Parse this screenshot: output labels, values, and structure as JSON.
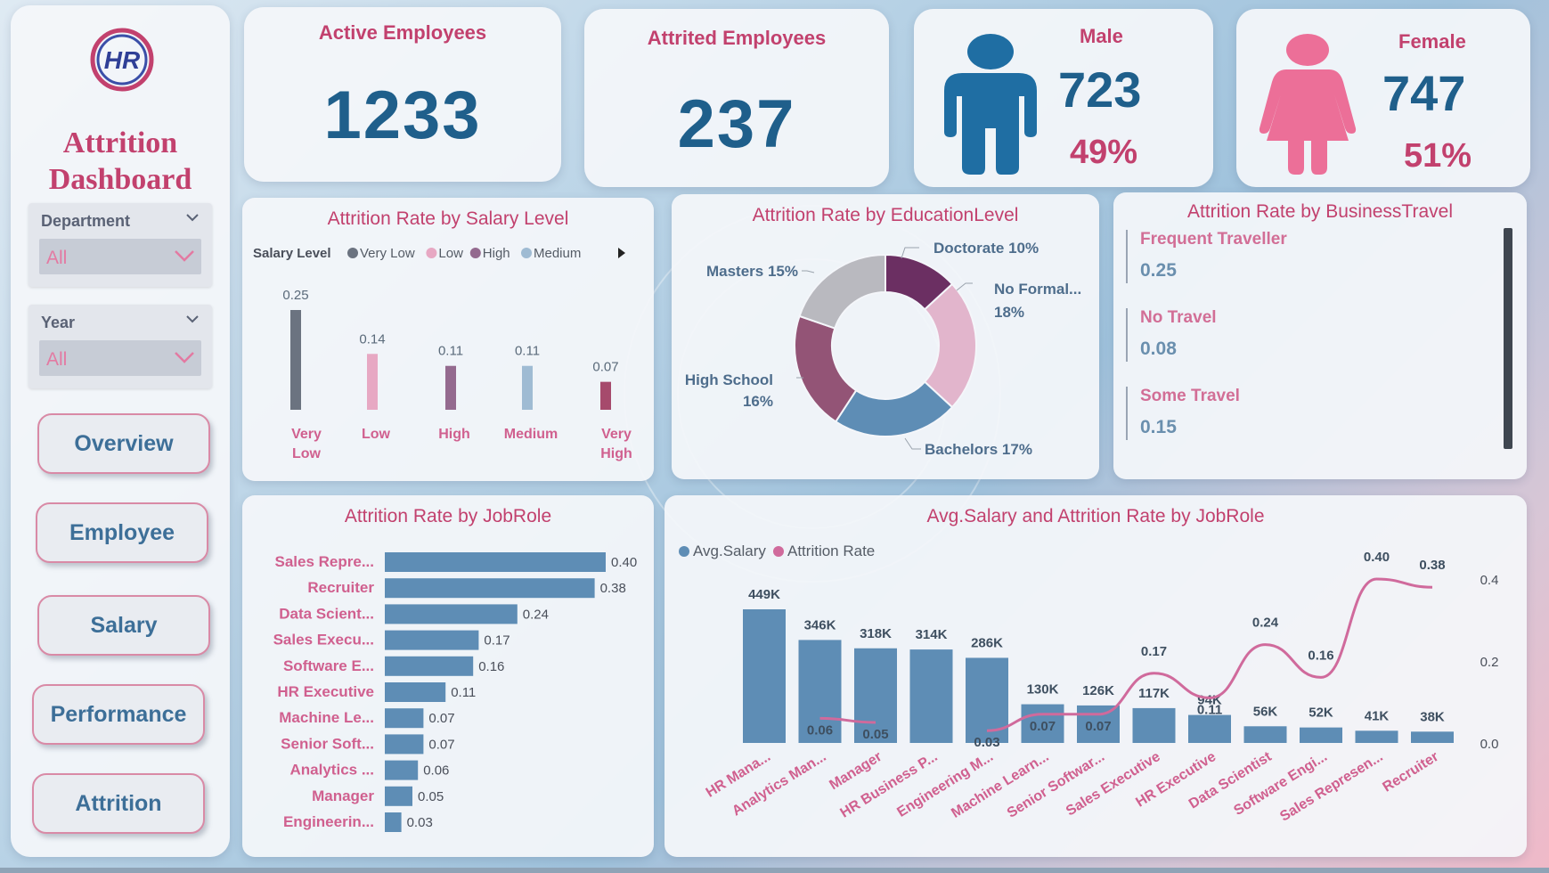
{
  "sidebar": {
    "logo_text": "HR",
    "title_line1": "Attrition",
    "title_line2": "Dashboard",
    "slicers": [
      {
        "label": "Department",
        "value": "All"
      },
      {
        "label": "Year",
        "value": "All"
      }
    ],
    "nav": [
      "Overview",
      "Employee",
      "Salary",
      "Performance",
      "Attrition"
    ]
  },
  "kpis": {
    "active": {
      "title": "Active Employees",
      "value": "1233"
    },
    "attrited": {
      "title": "Attrited Employees",
      "value": "237"
    },
    "male": {
      "title": "Male",
      "value": "723",
      "pct": "49%",
      "color": "#1f6ea3",
      "icon": "male-person-icon"
    },
    "female": {
      "title": "Female",
      "value": "747",
      "pct": "51%",
      "color": "#ec6f98",
      "icon": "female-person-icon"
    }
  },
  "salary_level": {
    "title": "Attrition Rate by Salary Level",
    "legend_title": "Salary Level",
    "legend": [
      {
        "name": "Very Low",
        "color": "#6b7380"
      },
      {
        "name": "Low",
        "color": "#e7a8c3"
      },
      {
        "name": "High",
        "color": "#946a8f"
      },
      {
        "name": "Medium",
        "color": "#9fbbd3"
      }
    ],
    "bars": [
      {
        "label": [
          "Very",
          "Low"
        ],
        "value": 0.25,
        "value_text": "0.25",
        "color": "#6b7380"
      },
      {
        "label": [
          "Low"
        ],
        "value": 0.14,
        "value_text": "0.14",
        "color": "#e7a8c3"
      },
      {
        "label": [
          "High"
        ],
        "value": 0.11,
        "value_text": "0.11",
        "color": "#946a8f"
      },
      {
        "label": [
          "Medium"
        ],
        "value": 0.11,
        "value_text": "0.11",
        "color": "#9fbbd3"
      },
      {
        "label": [
          "Very",
          "High"
        ],
        "value": 0.07,
        "value_text": "0.07",
        "color": "#a64a6c"
      }
    ]
  },
  "education": {
    "title": "Attrition Rate by EducationLevel",
    "slices": [
      {
        "name": "Doctorate",
        "pct": 10,
        "label": "Doctorate 10%",
        "color": "#6b2f62"
      },
      {
        "name": "No Formal...",
        "pct": 18,
        "label1": "No Formal...",
        "label2": "18%",
        "color": "#e2b5cc"
      },
      {
        "name": "Bachelors",
        "pct": 17,
        "label": "Bachelors 17%",
        "color": "#5e8db5"
      },
      {
        "name": "High School",
        "pct": 16,
        "label1": "High School",
        "label2": "16%",
        "color": "#935476"
      },
      {
        "name": "Masters",
        "pct": 15,
        "label": "Masters 15%",
        "color": "#b9b9bf"
      }
    ]
  },
  "travel": {
    "title": "Attrition Rate by BusinessTravel",
    "items": [
      {
        "name": "Frequent Traveller",
        "value": "0.25"
      },
      {
        "name": "No Travel",
        "value": "0.08"
      },
      {
        "name": "Some Travel",
        "value": "0.15"
      }
    ]
  },
  "jobrole": {
    "title": "Attrition Rate by JobRole",
    "color": "#5e8db5",
    "rows": [
      {
        "label": "Sales Repre...",
        "value": 0.4,
        "text": "0.40"
      },
      {
        "label": "Recruiter",
        "value": 0.38,
        "text": "0.38"
      },
      {
        "label": "Data Scient...",
        "value": 0.24,
        "text": "0.24"
      },
      {
        "label": "Sales Execu...",
        "value": 0.17,
        "text": "0.17"
      },
      {
        "label": "Software E...",
        "value": 0.16,
        "text": "0.16"
      },
      {
        "label": "HR Executive",
        "value": 0.11,
        "text": "0.11"
      },
      {
        "label": "Machine Le...",
        "value": 0.07,
        "text": "0.07"
      },
      {
        "label": "Senior Soft...",
        "value": 0.07,
        "text": "0.07"
      },
      {
        "label": "Analytics ...",
        "value": 0.06,
        "text": "0.06"
      },
      {
        "label": "Manager",
        "value": 0.05,
        "text": "0.05"
      },
      {
        "label": "Engineerin...",
        "value": 0.03,
        "text": "0.03"
      }
    ]
  },
  "combo": {
    "title": "Avg.Salary and Attrition Rate by JobRole",
    "legend": [
      {
        "name": "Avg.Salary",
        "color": "#5e8db5"
      },
      {
        "name": "Attrition Rate",
        "color": "#d06a9c"
      }
    ],
    "right_ticks": [
      "0.4",
      "0.2",
      "0.0"
    ],
    "roles": [
      "HR Mana...",
      "Analytics Man...",
      "Manager",
      "HR Business P...",
      "Engineering M...",
      "Machine Learn...",
      "Senior Softwar...",
      "Sales Executive",
      "HR Executive",
      "Data Scientist",
      "Software Engi...",
      "Sales Represen...",
      "Recruiter"
    ],
    "salary": [
      449,
      346,
      318,
      314,
      286,
      130,
      126,
      117,
      94,
      56,
      52,
      41,
      38
    ],
    "salary_text": [
      "449K",
      "346K",
      "318K",
      "314K",
      "286K",
      "130K",
      "126K",
      "117K",
      "94K",
      "56K",
      "52K",
      "41K",
      "38K"
    ],
    "rate": [
      null,
      0.06,
      0.05,
      null,
      0.03,
      0.07,
      0.07,
      0.17,
      0.11,
      0.24,
      0.16,
      0.4,
      0.38
    ],
    "rate_text": [
      "",
      "0.06",
      "0.05",
      "",
      "0.03",
      "0.07",
      "0.07",
      "0.17",
      "0.11",
      "0.24",
      "0.16",
      "0.40",
      "0.38"
    ]
  },
  "chart_data": [
    {
      "type": "bar",
      "title": "Attrition Rate by Salary Level",
      "categories": [
        "Very Low",
        "Low",
        "High",
        "Medium",
        "Very High"
      ],
      "values": [
        0.25,
        0.14,
        0.11,
        0.11,
        0.07
      ]
    },
    {
      "type": "pie",
      "title": "Attrition Rate by EducationLevel",
      "categories": [
        "Doctorate",
        "No Formal...",
        "Bachelors",
        "High School",
        "Masters"
      ],
      "values": [
        10,
        18,
        17,
        16,
        15
      ]
    },
    {
      "type": "bar",
      "title": "Attrition Rate by JobRole",
      "categories": [
        "Sales Repre...",
        "Recruiter",
        "Data Scient...",
        "Sales Execu...",
        "Software E...",
        "HR Executive",
        "Machine Le...",
        "Senior Soft...",
        "Analytics ...",
        "Manager",
        "Engineerin..."
      ],
      "values": [
        0.4,
        0.38,
        0.24,
        0.17,
        0.16,
        0.11,
        0.07,
        0.07,
        0.06,
        0.05,
        0.03
      ]
    },
    {
      "type": "bar",
      "title": "Avg.Salary and Attrition Rate by JobRole",
      "categories": [
        "HR Mana...",
        "Analytics Man...",
        "Manager",
        "HR Business P...",
        "Engineering M...",
        "Machine Learn...",
        "Senior Softwar...",
        "Sales Executive",
        "HR Executive",
        "Data Scientist",
        "Software Engi...",
        "Sales Represen...",
        "Recruiter"
      ],
      "series": [
        {
          "name": "Avg.Salary",
          "values": [
            449,
            346,
            318,
            314,
            286,
            130,
            126,
            117,
            94,
            56,
            52,
            41,
            38
          ]
        },
        {
          "name": "Attrition Rate",
          "values": [
            null,
            0.06,
            0.05,
            null,
            0.03,
            0.07,
            0.07,
            0.17,
            0.11,
            0.24,
            0.16,
            0.4,
            0.38
          ]
        }
      ]
    }
  ]
}
